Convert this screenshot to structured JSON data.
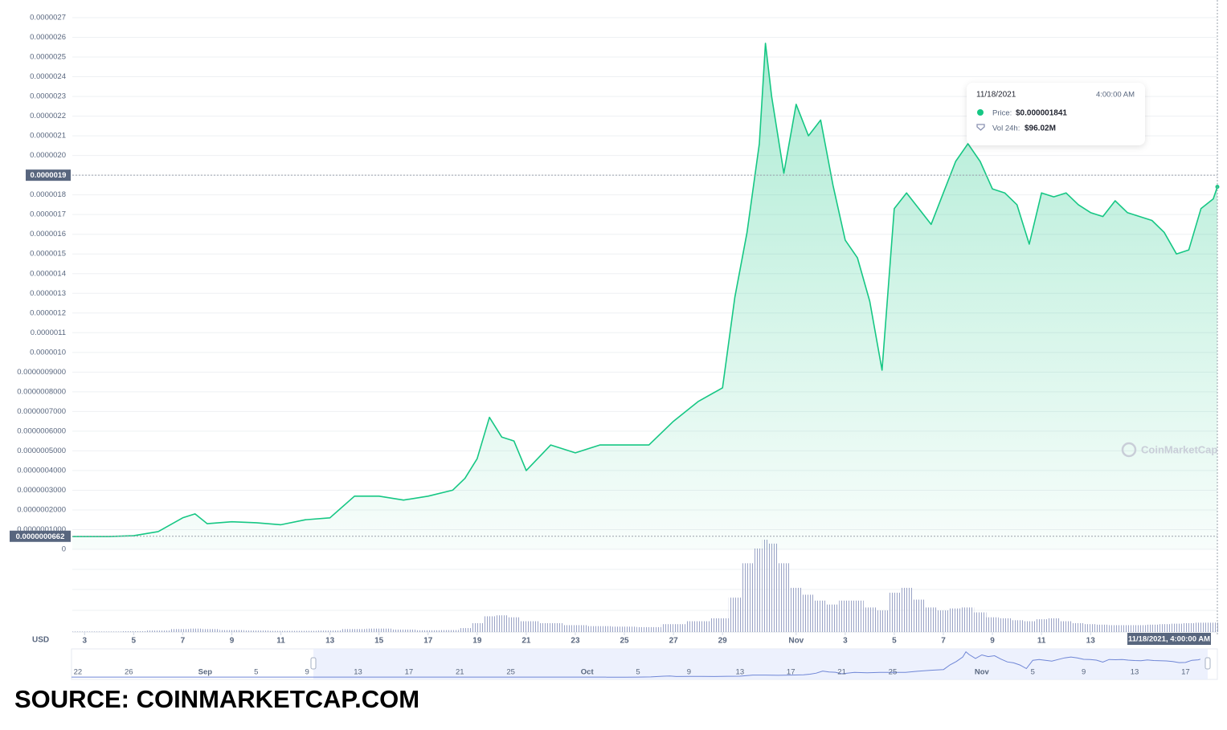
{
  "chart_data": {
    "type": "line",
    "currency": "USD",
    "watermark": "CoinMarketCap",
    "source": "SOURCE: COINMARKETCAP.COM",
    "x": [
      "2021-10-02T12:00",
      "2021-10-03T00:00",
      "2021-10-04T00:00",
      "2021-10-05T00:00",
      "2021-10-06T00:00",
      "2021-10-07T00:00",
      "2021-10-07T12:00",
      "2021-10-08T00:00",
      "2021-10-09T00:00",
      "2021-10-10T00:00",
      "2021-10-11T00:00",
      "2021-10-12T00:00",
      "2021-10-13T00:00",
      "2021-10-14T00:00",
      "2021-10-15T00:00",
      "2021-10-16T00:00",
      "2021-10-17T00:00",
      "2021-10-18T00:00",
      "2021-10-18T12:00",
      "2021-10-19T00:00",
      "2021-10-19T12:00",
      "2021-10-20T00:00",
      "2021-10-20T12:00",
      "2021-10-21T00:00",
      "2021-10-22T00:00",
      "2021-10-23T00:00",
      "2021-10-24T00:00",
      "2021-10-25T00:00",
      "2021-10-26T00:00",
      "2021-10-27T00:00",
      "2021-10-28T00:00",
      "2021-10-29T00:00",
      "2021-10-29T12:00",
      "2021-10-30T00:00",
      "2021-10-30T12:00",
      "2021-10-30T18:00",
      "2021-10-31T00:00",
      "2021-10-31T12:00",
      "2021-11-01T00:00",
      "2021-11-01T12:00",
      "2021-11-02T00:00",
      "2021-11-02T12:00",
      "2021-11-03T00:00",
      "2021-11-03T12:00",
      "2021-11-04T00:00",
      "2021-11-04T12:00",
      "2021-11-05T00:00",
      "2021-11-05T12:00",
      "2021-11-06T00:00",
      "2021-11-06T12:00",
      "2021-11-07T00:00",
      "2021-11-07T12:00",
      "2021-11-08T00:00",
      "2021-11-08T12:00",
      "2021-11-09T00:00",
      "2021-11-09T12:00",
      "2021-11-10T00:00",
      "2021-11-10T12:00",
      "2021-11-11T00:00",
      "2021-11-11T12:00",
      "2021-11-12T00:00",
      "2021-11-12T12:00",
      "2021-11-13T00:00",
      "2021-11-13T12:00",
      "2021-11-14T00:00",
      "2021-11-14T12:00",
      "2021-11-15T00:00",
      "2021-11-15T12:00",
      "2021-11-16T00:00",
      "2021-11-16T12:00",
      "2021-11-17T00:00",
      "2021-11-17T12:00",
      "2021-11-18T00:00",
      "2021-11-18T04:00"
    ],
    "series": [
      {
        "color": "#16c784",
        "values": [
          6.5e-08,
          6.5e-08,
          6.5e-08,
          6.9e-08,
          9e-08,
          1.6e-07,
          1.8e-07,
          1.3e-07,
          1.4e-07,
          1.35e-07,
          1.25e-07,
          1.5e-07,
          1.6e-07,
          2.7e-07,
          2.7e-07,
          2.5e-07,
          2.7e-07,
          3e-07,
          3.6e-07,
          4.6e-07,
          6.7e-07,
          5.7e-07,
          5.5e-07,
          4e-07,
          5.3e-07,
          4.9e-07,
          5.3e-07,
          5.3e-07,
          5.3e-07,
          6.5e-07,
          7.5e-07,
          8.2e-07,
          1.28e-06,
          1.61e-06,
          2.06e-06,
          2.57e-06,
          2.3e-06,
          1.91e-06,
          2.26e-06,
          2.1e-06,
          2.18e-06,
          1.85e-06,
          1.57e-06,
          1.48e-06,
          1.26e-06,
          9.1e-07,
          1.73e-06,
          1.81e-06,
          1.73e-06,
          1.65e-06,
          1.81e-06,
          1.97e-06,
          2.06e-06,
          1.97e-06,
          1.83e-06,
          1.81e-06,
          1.75e-06,
          1.55e-06,
          1.81e-06,
          1.79e-06,
          1.81e-06,
          1.75e-06,
          1.71e-06,
          1.69e-06,
          1.77e-06,
          1.71e-06,
          1.69e-06,
          1.67e-06,
          1.61e-06,
          1.5e-06,
          1.52e-06,
          1.73e-06,
          1.78e-06,
          1.841e-06
        ]
      }
    ],
    "volume": {
      "color": "#9aa3c6",
      "values": [
        5,
        5,
        5,
        8,
        15,
        30,
        35,
        30,
        20,
        15,
        12,
        12,
        15,
        30,
        35,
        25,
        18,
        20,
        40,
        90,
        160,
        170,
        150,
        110,
        90,
        70,
        60,
        55,
        50,
        80,
        110,
        140,
        350,
        700,
        850,
        940,
        900,
        700,
        450,
        380,
        320,
        280,
        320,
        320,
        250,
        220,
        400,
        450,
        330,
        250,
        220,
        240,
        250,
        200,
        150,
        140,
        120,
        110,
        130,
        140,
        110,
        90,
        80,
        75,
        70,
        70,
        70,
        75,
        80,
        85,
        90,
        95,
        95,
        96.02
      ]
    },
    "xlim": [
      "2021-10-02T12:00",
      "2021-11-18T04:00"
    ],
    "xticks": [
      {
        "value": "2021-10-03T00:00",
        "label": "3"
      },
      {
        "value": "2021-10-05T00:00",
        "label": "5"
      },
      {
        "value": "2021-10-07T00:00",
        "label": "7"
      },
      {
        "value": "2021-10-09T00:00",
        "label": "9"
      },
      {
        "value": "2021-10-11T00:00",
        "label": "11"
      },
      {
        "value": "2021-10-13T00:00",
        "label": "13"
      },
      {
        "value": "2021-10-15T00:00",
        "label": "15"
      },
      {
        "value": "2021-10-17T00:00",
        "label": "17"
      },
      {
        "value": "2021-10-19T00:00",
        "label": "19"
      },
      {
        "value": "2021-10-21T00:00",
        "label": "21"
      },
      {
        "value": "2021-10-23T00:00",
        "label": "23"
      },
      {
        "value": "2021-10-25T00:00",
        "label": "25"
      },
      {
        "value": "2021-10-27T00:00",
        "label": "27"
      },
      {
        "value": "2021-10-29T00:00",
        "label": "29"
      },
      {
        "value": "2021-11-01T00:00",
        "label": "Nov"
      },
      {
        "value": "2021-11-03T00:00",
        "label": "3"
      },
      {
        "value": "2021-11-05T00:00",
        "label": "5"
      },
      {
        "value": "2021-11-07T00:00",
        "label": "7"
      },
      {
        "value": "2021-11-09T00:00",
        "label": "9"
      },
      {
        "value": "2021-11-11T00:00",
        "label": "11"
      },
      {
        "value": "2021-11-13T00:00",
        "label": "13"
      }
    ],
    "ylim": [
      0,
      2.7e-06
    ],
    "yticks": [
      2.7e-06,
      2.6e-06,
      2.5e-06,
      2.4e-06,
      2.3e-06,
      2.2e-06,
      2.1e-06,
      {
        "value": 2e-06,
        "label": "0.0000020"
      },
      1.9e-06,
      1.8e-06,
      1.7e-06,
      1.6e-06,
      1.5e-06,
      1.4e-06,
      1.3e-06,
      1.2e-06,
      1.1e-06,
      {
        "value": 1e-06,
        "label": "0.0000010"
      },
      {
        "value": 9e-07,
        "label": "0.0000009000"
      },
      {
        "value": 8e-07,
        "label": "0.0000008000"
      },
      {
        "value": 7e-07,
        "label": "0.0000007000"
      },
      {
        "value": 6e-07,
        "label": "0.0000006000"
      },
      {
        "value": 5e-07,
        "label": "0.0000005000"
      },
      {
        "value": 4e-07,
        "label": "0.0000004000"
      },
      {
        "value": 3e-07,
        "label": "0.0000003000"
      },
      {
        "value": 2e-07,
        "label": "0.0000002000"
      },
      {
        "value": 1e-07,
        "label": "0.0000001000"
      },
      0
    ],
    "grid": true,
    "crosshair_price": 1.9e-06,
    "min_price": {
      "value": 6.62e-08,
      "label": "0.0000000662"
    },
    "crosshair_time": {
      "value": "2021-11-18T04:00",
      "label": "11/18/2021, 4:00:00 AM"
    },
    "tooltip": {
      "date": "11/18/2021",
      "time": "4:00:00 AM",
      "price_label": "Price:",
      "price": "$0.000001841",
      "volume_label": "Vol 24h:",
      "volume": "$96.02M"
    },
    "navigator": {
      "xlim": [
        "2021-08-21T12:00",
        "2021-11-19T12:00"
      ],
      "xticks": [
        {
          "value": "2021-08-22T00:00",
          "label": "22"
        },
        {
          "value": "2021-08-26T00:00",
          "label": "26"
        },
        {
          "value": "2021-09-01T00:00",
          "label": "Sep"
        },
        {
          "value": "2021-09-05T00:00",
          "label": "5"
        },
        {
          "value": "2021-09-09T00:00",
          "label": "9"
        },
        {
          "value": "2021-09-13T00:00",
          "label": "13"
        },
        {
          "value": "2021-09-17T00:00",
          "label": "17"
        },
        {
          "value": "2021-09-21T00:00",
          "label": "21"
        },
        {
          "value": "2021-09-25T00:00",
          "label": "25"
        },
        {
          "value": "2021-10-01T00:00",
          "label": "Oct"
        },
        {
          "value": "2021-10-05T00:00",
          "label": "5"
        },
        {
          "value": "2021-10-09T00:00",
          "label": "9"
        },
        {
          "value": "2021-10-13T00:00",
          "label": "13"
        },
        {
          "value": "2021-10-17T00:00",
          "label": "17"
        },
        {
          "value": "2021-10-21T00:00",
          "label": "21"
        },
        {
          "value": "2021-10-25T00:00",
          "label": "25"
        },
        {
          "value": "2021-11-01T00:00",
          "label": "Nov"
        },
        {
          "value": "2021-11-05T00:00",
          "label": "5"
        },
        {
          "value": "2021-11-09T00:00",
          "label": "9"
        },
        {
          "value": "2021-11-13T00:00",
          "label": "13"
        },
        {
          "value": "2021-11-17T00:00",
          "label": "17"
        }
      ]
    }
  }
}
